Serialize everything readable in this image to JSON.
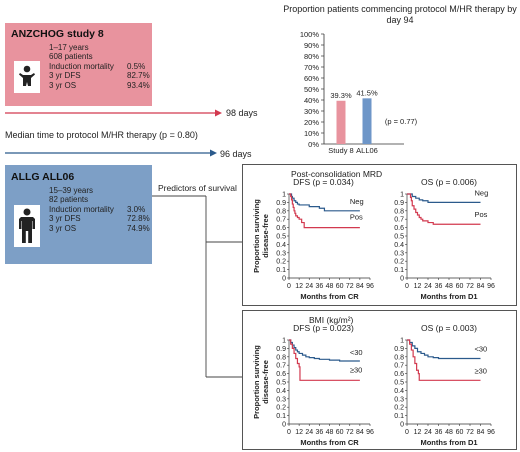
{
  "anzchog": {
    "title": "ANZCHOG study 8",
    "stats": [
      {
        "label": "1–17 years",
        "value": ""
      },
      {
        "label": "608 patients",
        "value": ""
      },
      {
        "label": "Induction mortality",
        "value": "0.5%"
      },
      {
        "label": "3 yr DFS",
        "value": "82.7%"
      },
      {
        "label": "3 yr OS",
        "value": "93.4%"
      }
    ],
    "days": "98 days",
    "color": "#e8939e"
  },
  "median_label": "Median time to protocol M/HR therapy (p = 0.80)",
  "allg": {
    "title": "ALLG ALL06",
    "stats": [
      {
        "label": "15–39 years",
        "value": ""
      },
      {
        "label": "82 patients",
        "value": ""
      },
      {
        "label": "Induction mortality",
        "value": "3.0%"
      },
      {
        "label": "3 yr DFS",
        "value": "72.8%"
      },
      {
        "label": "3 yr OS",
        "value": "74.9%"
      }
    ],
    "days": "96 days",
    "color": "#7d9fc6"
  },
  "predictors_label": "Predictors of survival",
  "colors": {
    "red": "#d2394f",
    "blue": "#2b5a8c",
    "red_bar": "#e8939e",
    "blue_bar": "#6e96c8"
  },
  "chart_data": [
    {
      "type": "bar",
      "title": "Proportion patients commencing protocol M/HR therapy by day 94",
      "categories": [
        "Study 8",
        "ALL06"
      ],
      "values": [
        39.3,
        41.5
      ],
      "value_labels": [
        "39.3%",
        "41.5%"
      ],
      "annotation": "(p = 0.77)",
      "yticks": [
        "0%",
        "10%",
        "20%",
        "30%",
        "40%",
        "50%",
        "60%",
        "70%",
        "80%",
        "90%",
        "100%"
      ],
      "ylim": [
        0,
        100
      ]
    },
    {
      "type": "line",
      "group_title": "Post-consolidation MRD",
      "title": "DFS (p = 0.034)",
      "ylabel": "Proportion surviving disease-free",
      "xlabel": "Months from CR",
      "xticks": [
        "0",
        "12",
        "24",
        "36",
        "48",
        "60",
        "72",
        "84",
        "96"
      ],
      "yticks": [
        "0",
        "0.1",
        "0.2",
        "0.3",
        "0.4",
        "0.5",
        "0.6",
        "0.7",
        "0.8",
        "0.9",
        "1"
      ],
      "xlim": [
        0,
        96
      ],
      "ylim": [
        0,
        1
      ],
      "series": [
        {
          "name": "Neg",
          "color": "blue",
          "x": [
            0,
            2,
            3,
            4,
            6,
            8,
            10,
            12,
            18,
            24,
            30,
            36,
            42,
            60,
            84
          ],
          "y": [
            1,
            1,
            0.97,
            0.95,
            0.92,
            0.9,
            0.88,
            0.87,
            0.87,
            0.85,
            0.85,
            0.83,
            0.8,
            0.8,
            0.8
          ]
        },
        {
          "name": "Pos",
          "color": "red",
          "x": [
            0,
            2,
            3,
            4,
            5,
            6,
            7,
            8,
            10,
            12,
            15,
            18,
            60,
            84
          ],
          "y": [
            1,
            0.97,
            0.93,
            0.88,
            0.84,
            0.8,
            0.77,
            0.74,
            0.72,
            0.7,
            0.66,
            0.6,
            0.6,
            0.6
          ]
        }
      ]
    },
    {
      "type": "line",
      "title": "OS (p = 0.006)",
      "ylabel": "",
      "xlabel": "Months from D1",
      "xticks": [
        "0",
        "12",
        "24",
        "36",
        "48",
        "60",
        "72",
        "84",
        "96"
      ],
      "yticks": [
        "0",
        "0.1",
        "0.2",
        "0.3",
        "0.4",
        "0.5",
        "0.6",
        "0.7",
        "0.8",
        "0.9",
        "1"
      ],
      "xlim": [
        0,
        96
      ],
      "ylim": [
        0,
        1
      ],
      "series": [
        {
          "name": "Neg",
          "color": "blue",
          "x": [
            0,
            4,
            6,
            10,
            14,
            18,
            24,
            30,
            60,
            84
          ],
          "y": [
            1,
            1,
            0.97,
            0.95,
            0.93,
            0.92,
            0.9,
            0.9,
            0.9,
            0.9
          ]
        },
        {
          "name": "Pos",
          "color": "red",
          "x": [
            0,
            4,
            5,
            6,
            8,
            10,
            12,
            14,
            16,
            18,
            24,
            30,
            60,
            84
          ],
          "y": [
            1,
            0.96,
            0.92,
            0.86,
            0.82,
            0.78,
            0.75,
            0.72,
            0.7,
            0.68,
            0.66,
            0.64,
            0.64,
            0.64
          ]
        }
      ]
    },
    {
      "type": "line",
      "group_title": "BMI (kg/m²)",
      "title": "DFS (p = 0.023)",
      "ylabel": "Proportion surviving disease-free",
      "xlabel": "Months from CR",
      "xticks": [
        "0",
        "12",
        "24",
        "36",
        "48",
        "60",
        "72",
        "84",
        "96"
      ],
      "yticks": [
        "0",
        "0.1",
        "0.2",
        "0.3",
        "0.4",
        "0.5",
        "0.6",
        "0.7",
        "0.8",
        "0.9",
        "1"
      ],
      "xlim": [
        0,
        96
      ],
      "ylim": [
        0,
        1
      ],
      "series": [
        {
          "name": "<30",
          "color": "blue",
          "x": [
            0,
            2,
            4,
            6,
            8,
            10,
            12,
            16,
            20,
            24,
            30,
            36,
            48,
            60,
            84
          ],
          "y": [
            1,
            0.97,
            0.94,
            0.91,
            0.88,
            0.86,
            0.84,
            0.82,
            0.8,
            0.79,
            0.78,
            0.77,
            0.76,
            0.75,
            0.75
          ]
        },
        {
          "name": "≥30",
          "color": "red",
          "x": [
            0,
            2,
            4,
            6,
            8,
            10,
            12,
            13,
            84
          ],
          "y": [
            1,
            0.95,
            0.9,
            0.84,
            0.78,
            0.72,
            0.68,
            0.52,
            0.52
          ]
        }
      ]
    },
    {
      "type": "line",
      "title": "OS (p = 0.003)",
      "ylabel": "",
      "xlabel": "Months from D1",
      "xticks": [
        "0",
        "12",
        "24",
        "36",
        "48",
        "60",
        "72",
        "84",
        "96"
      ],
      "yticks": [
        "0",
        "0.1",
        "0.2",
        "0.3",
        "0.4",
        "0.5",
        "0.6",
        "0.7",
        "0.8",
        "0.9",
        "1"
      ],
      "xlim": [
        0,
        96
      ],
      "ylim": [
        0,
        1
      ],
      "series": [
        {
          "name": "<30",
          "color": "blue",
          "x": [
            0,
            3,
            6,
            9,
            12,
            16,
            20,
            24,
            30,
            36,
            60,
            84
          ],
          "y": [
            1,
            0.97,
            0.93,
            0.9,
            0.86,
            0.84,
            0.82,
            0.8,
            0.79,
            0.78,
            0.78,
            0.78
          ]
        },
        {
          "name": "≥30",
          "color": "red",
          "x": [
            0,
            3,
            5,
            7,
            9,
            11,
            13,
            14,
            84
          ],
          "y": [
            1,
            0.95,
            0.88,
            0.8,
            0.72,
            0.64,
            0.6,
            0.52,
            0.52
          ]
        }
      ]
    }
  ]
}
